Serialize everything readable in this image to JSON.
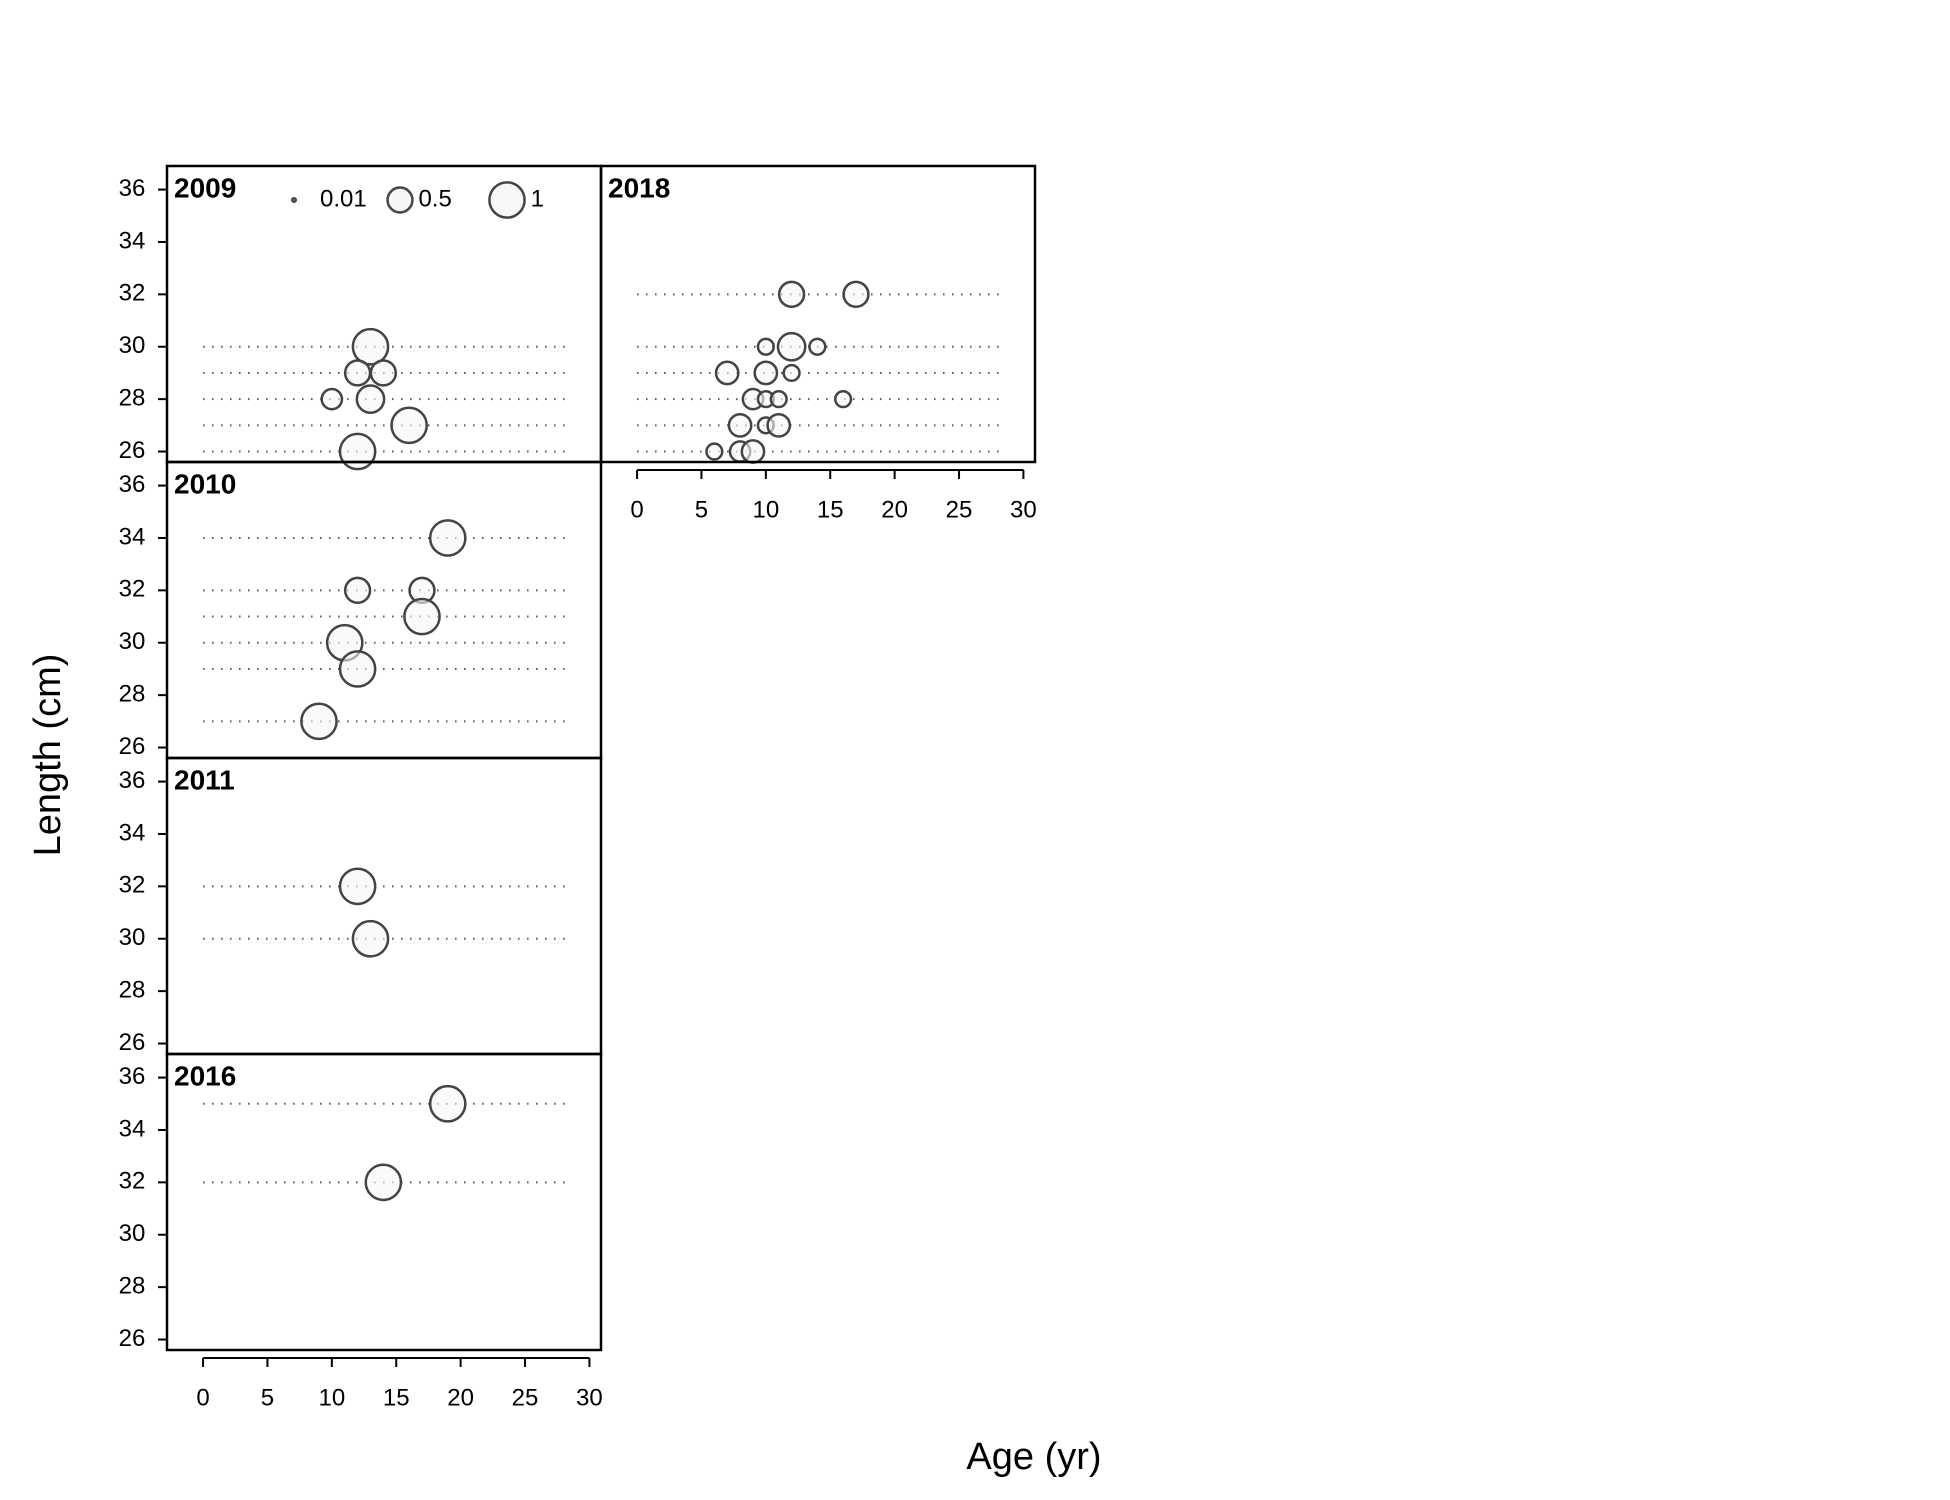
{
  "chart_data": {
    "type": "bubble",
    "xlabel": "Age (yr)",
    "ylabel": "Length (cm)",
    "xlim": [
      -2.8,
      30.9
    ],
    "xticks": [
      0,
      5,
      10,
      15,
      20,
      25,
      30
    ],
    "ylim": [
      25.6,
      36.9
    ],
    "yticks": [
      26,
      28,
      30,
      32,
      34,
      36
    ],
    "color": "#444444",
    "fill": "#f7f7f7",
    "legend_sizes": [
      0.01,
      0.5,
      1
    ],
    "panels": [
      {
        "title": "2009",
        "x": [
          13,
          12,
          14,
          10,
          13,
          16,
          12
        ],
        "y": [
          30,
          29,
          29,
          28,
          28,
          27,
          26
        ],
        "size": [
          1,
          0.5,
          0.5,
          0.33,
          0.6,
          1,
          1
        ]
      },
      {
        "title": "2010",
        "x": [
          19,
          12,
          17,
          17,
          11,
          12,
          9
        ],
        "y": [
          34,
          32,
          32,
          31,
          30,
          29,
          27
        ],
        "size": [
          1,
          0.5,
          0.5,
          1,
          1,
          1,
          1
        ]
      },
      {
        "title": "2011",
        "x": [
          12,
          13
        ],
        "y": [
          32,
          30
        ],
        "size": [
          1,
          1
        ]
      },
      {
        "title": "2016",
        "x": [
          19,
          14
        ],
        "y": [
          35,
          32
        ],
        "size": [
          1,
          1
        ]
      },
      {
        "title": "2018",
        "x": [
          12,
          17,
          10,
          12,
          14,
          7,
          10,
          12,
          9,
          10,
          11,
          16,
          8,
          10,
          11,
          6,
          8,
          9
        ],
        "y": [
          32,
          32,
          30,
          30,
          30,
          29,
          29,
          29,
          28,
          28,
          28,
          28,
          27,
          27,
          27,
          26,
          26,
          26
        ],
        "size": [
          0.5,
          0.5,
          0.2,
          0.6,
          0.2,
          0.4,
          0.4,
          0.2,
          0.33,
          0.2,
          0.2,
          0.2,
          0.4,
          0.2,
          0.4,
          0.2,
          0.33,
          0.4
        ]
      }
    ]
  }
}
